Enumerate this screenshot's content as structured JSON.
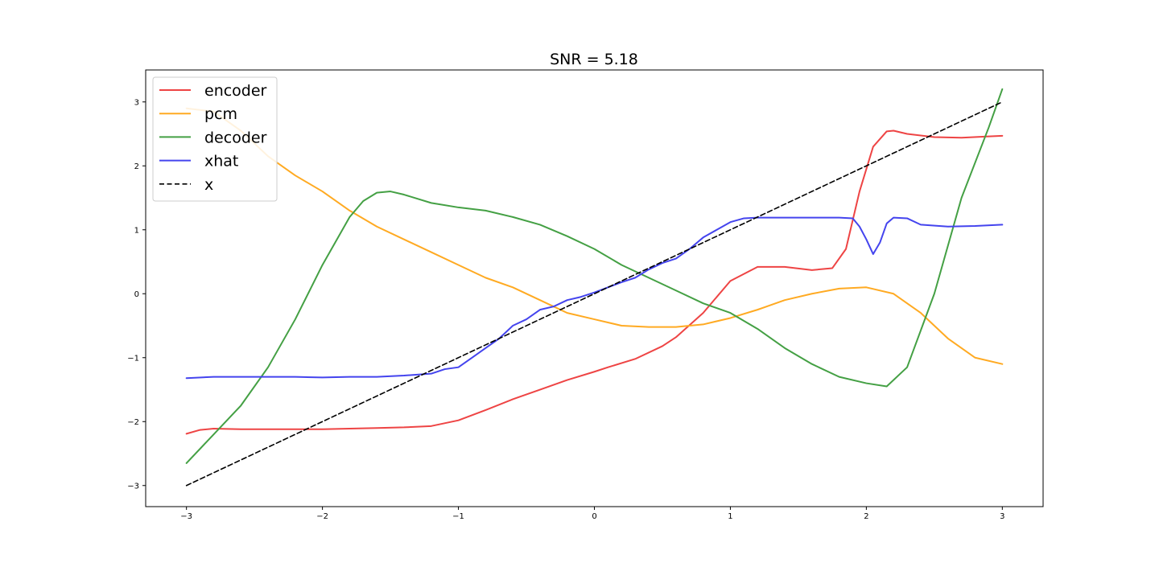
{
  "chart_data": {
    "type": "line",
    "title": "SNR = 5.18",
    "xlabel": "",
    "ylabel": "",
    "xlim": [
      -3.3,
      3.3
    ],
    "ylim": [
      -3.33,
      3.5
    ],
    "xticks": [
      -3,
      -2,
      -1,
      0,
      1,
      2,
      3
    ],
    "yticks": [
      -3,
      -2,
      -1,
      0,
      1,
      2,
      3
    ],
    "xtick_labels": [
      "−3",
      "−2",
      "−1",
      "0",
      "1",
      "2",
      "3"
    ],
    "ytick_labels": [
      "−3",
      "−2",
      "−1",
      "0",
      "1",
      "2",
      "3"
    ],
    "grid": false,
    "legend": {
      "placement": "top-left"
    },
    "series": [
      {
        "name": "encoder",
        "color": "#ee4444",
        "dash": "solid",
        "x": [
          -3.0,
          -2.9,
          -2.8,
          -2.6,
          -2.4,
          -2.2,
          -2.0,
          -1.8,
          -1.6,
          -1.4,
          -1.2,
          -1.0,
          -0.9,
          -0.8,
          -0.6,
          -0.4,
          -0.2,
          0.0,
          0.1,
          0.3,
          0.5,
          0.6,
          0.8,
          1.0,
          1.2,
          1.4,
          1.6,
          1.75,
          1.85,
          1.95,
          2.05,
          2.15,
          2.2,
          2.3,
          2.5,
          2.7,
          2.9,
          3.0
        ],
        "y": [
          -2.19,
          -2.13,
          -2.11,
          -2.12,
          -2.12,
          -2.12,
          -2.12,
          -2.11,
          -2.1,
          -2.09,
          -2.07,
          -1.98,
          -1.9,
          -1.82,
          -1.65,
          -1.5,
          -1.35,
          -1.22,
          -1.15,
          -1.02,
          -0.82,
          -0.68,
          -0.3,
          0.2,
          0.42,
          0.42,
          0.37,
          0.4,
          0.7,
          1.6,
          2.3,
          2.54,
          2.55,
          2.5,
          2.45,
          2.44,
          2.46,
          2.47
        ]
      },
      {
        "name": "pcm",
        "color": "#ffaa22",
        "dash": "solid",
        "x": [
          -3.0,
          -2.8,
          -2.6,
          -2.4,
          -2.2,
          -2.0,
          -1.8,
          -1.6,
          -1.4,
          -1.2,
          -1.0,
          -0.8,
          -0.6,
          -0.4,
          -0.2,
          0.0,
          0.2,
          0.4,
          0.6,
          0.8,
          1.0,
          1.2,
          1.4,
          1.6,
          1.8,
          2.0,
          2.2,
          2.4,
          2.6,
          2.8,
          3.0
        ],
        "y": [
          2.9,
          2.85,
          2.55,
          2.15,
          1.85,
          1.6,
          1.3,
          1.05,
          0.85,
          0.65,
          0.45,
          0.25,
          0.1,
          -0.1,
          -0.3,
          -0.4,
          -0.5,
          -0.52,
          -0.52,
          -0.48,
          -0.38,
          -0.25,
          -0.1,
          0.0,
          0.08,
          0.1,
          0.0,
          -0.3,
          -0.7,
          -1.0,
          -1.1
        ]
      },
      {
        "name": "decoder",
        "color": "#44a044",
        "dash": "solid",
        "x": [
          -3.0,
          -2.8,
          -2.6,
          -2.4,
          -2.2,
          -2.0,
          -1.8,
          -1.7,
          -1.6,
          -1.5,
          -1.4,
          -1.2,
          -1.0,
          -0.8,
          -0.6,
          -0.4,
          -0.2,
          0.0,
          0.2,
          0.4,
          0.6,
          0.8,
          1.0,
          1.2,
          1.4,
          1.6,
          1.8,
          2.0,
          2.15,
          2.3,
          2.5,
          2.7,
          2.9,
          3.0
        ],
        "y": [
          -2.65,
          -2.2,
          -1.75,
          -1.15,
          -0.4,
          0.45,
          1.2,
          1.45,
          1.58,
          1.6,
          1.55,
          1.42,
          1.35,
          1.3,
          1.2,
          1.08,
          0.9,
          0.7,
          0.45,
          0.25,
          0.05,
          -0.15,
          -0.3,
          -0.55,
          -0.85,
          -1.1,
          -1.3,
          -1.4,
          -1.45,
          -1.15,
          0.0,
          1.5,
          2.6,
          3.2
        ]
      },
      {
        "name": "xhat",
        "color": "#4444ee",
        "dash": "solid",
        "x": [
          -3.0,
          -2.8,
          -2.6,
          -2.4,
          -2.2,
          -2.0,
          -1.8,
          -1.6,
          -1.4,
          -1.2,
          -1.1,
          -1.0,
          -0.9,
          -0.8,
          -0.7,
          -0.6,
          -0.5,
          -0.4,
          -0.3,
          -0.2,
          -0.1,
          0.0,
          0.1,
          0.2,
          0.3,
          0.4,
          0.5,
          0.6,
          0.7,
          0.8,
          0.9,
          1.0,
          1.1,
          1.2,
          1.4,
          1.6,
          1.8,
          1.9,
          1.95,
          2.0,
          2.05,
          2.1,
          2.15,
          2.2,
          2.3,
          2.4,
          2.6,
          2.8,
          3.0
        ],
        "y": [
          -1.32,
          -1.3,
          -1.3,
          -1.3,
          -1.3,
          -1.31,
          -1.3,
          -1.3,
          -1.28,
          -1.25,
          -1.18,
          -1.15,
          -1.0,
          -0.85,
          -0.7,
          -0.5,
          -0.4,
          -0.25,
          -0.2,
          -0.1,
          -0.05,
          0.02,
          0.1,
          0.18,
          0.25,
          0.38,
          0.48,
          0.55,
          0.7,
          0.88,
          1.0,
          1.12,
          1.18,
          1.19,
          1.19,
          1.19,
          1.19,
          1.18,
          1.05,
          0.85,
          0.62,
          0.8,
          1.1,
          1.19,
          1.18,
          1.08,
          1.05,
          1.06,
          1.08
        ]
      },
      {
        "name": "x",
        "color": "#000000",
        "dash": "dashed",
        "x": [
          -3.0,
          3.0
        ],
        "y": [
          -3.0,
          3.0
        ]
      }
    ]
  }
}
